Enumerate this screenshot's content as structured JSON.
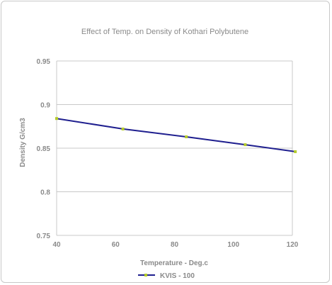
{
  "chart_data": {
    "type": "line",
    "title": "Effect of Temp. on Density of Kothari Polybutene",
    "xlabel": "Temperature - Deg.c",
    "ylabel": "Density G/cm3",
    "xlim": [
      40,
      120
    ],
    "ylim": [
      0.75,
      0.95
    ],
    "x_ticks": [
      "40",
      "60",
      "80",
      "100",
      "120"
    ],
    "y_ticks": [
      "0.75",
      "0.8",
      "0.85",
      "0.9",
      "0.95"
    ],
    "grid": "horizontal",
    "legend": "bottom",
    "series": [
      {
        "name": "KVIS - 100",
        "line_color": "#1f1f8f",
        "marker_color": "#b5cc2a",
        "x": [
          40,
          62.5,
          84,
          104,
          121
        ],
        "y": [
          0.884,
          0.872,
          0.863,
          0.854,
          0.846
        ]
      }
    ]
  }
}
